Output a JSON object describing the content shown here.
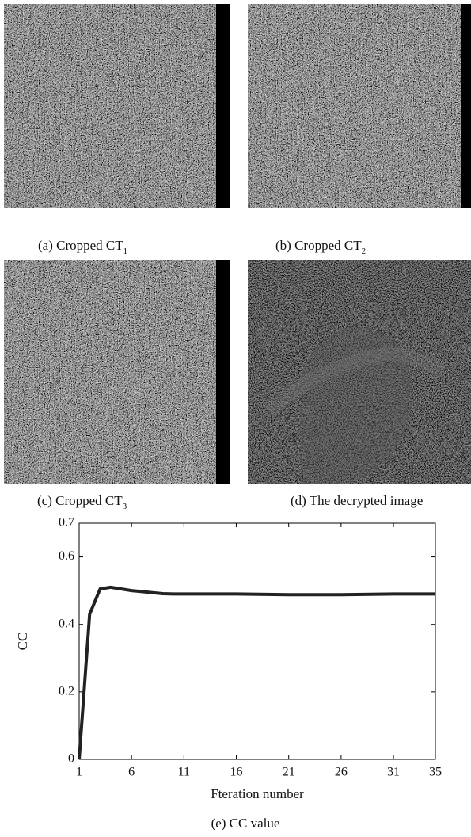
{
  "panels": [
    {
      "caption": "(a) Cropped CT",
      "subscript": "1"
    },
    {
      "caption": "(b) Cropped CT",
      "subscript": "2"
    },
    {
      "caption": "(c) Cropped CT",
      "subscript": "3"
    },
    {
      "caption": "(d) The decrypted image"
    }
  ],
  "chart_data": {
    "type": "line",
    "x": [
      1,
      2,
      3,
      4,
      5,
      6,
      7,
      8,
      9,
      10,
      11,
      16,
      21,
      26,
      31,
      35
    ],
    "series": [
      {
        "color": "#222222",
        "values": [
          0,
          0.43,
          0.505,
          0.51,
          0.505,
          0.5,
          0.497,
          0.494,
          0.491,
          0.49,
          0.49,
          0.49,
          0.488,
          0.488,
          0.49,
          0.49
        ]
      }
    ],
    "xlim": [
      1,
      35
    ],
    "ylim": [
      0,
      0.7
    ],
    "xticks": [
      1,
      6,
      11,
      16,
      21,
      26,
      31,
      35
    ],
    "yticks": [
      0,
      0.2,
      0.4,
      0.6,
      0.7
    ],
    "xlabel": "Fteration number",
    "ylabel": "CC",
    "caption": "(e) CC value"
  }
}
